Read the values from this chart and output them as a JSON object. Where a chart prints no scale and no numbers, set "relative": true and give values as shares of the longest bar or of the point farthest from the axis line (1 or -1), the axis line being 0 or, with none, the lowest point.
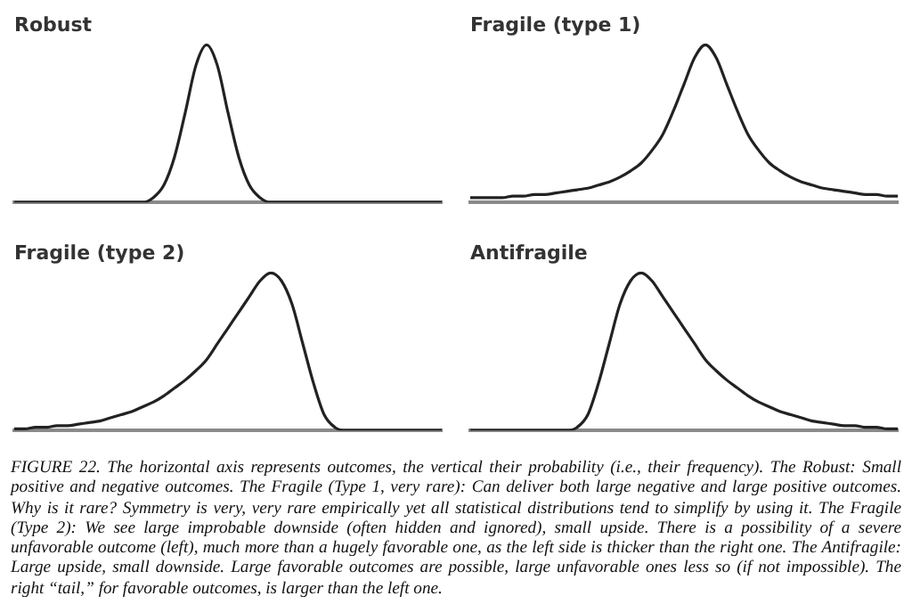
{
  "chart_data": [
    {
      "type": "line",
      "title": "Robust",
      "relative": true,
      "categories": [
        null,
        null,
        null,
        null,
        null,
        null,
        null,
        null,
        null,
        null,
        null,
        null,
        null,
        null,
        null,
        null,
        null,
        null,
        null,
        null,
        null,
        null,
        null,
        null,
        null,
        null,
        null,
        null,
        null,
        null,
        null,
        null,
        null,
        null,
        null,
        null,
        null,
        null,
        null,
        null,
        null
      ],
      "series": [
        {
          "color": "#222222",
          "values": [
            0,
            0,
            0,
            0,
            0,
            0,
            0,
            0,
            0,
            0,
            0,
            0,
            0,
            0.03,
            0.11,
            0.29,
            0.57,
            0.87,
            1,
            0.87,
            0.57,
            0.29,
            0.11,
            0.03,
            0,
            0,
            0,
            0,
            0,
            0,
            0,
            0,
            0,
            0,
            0,
            0,
            0,
            0,
            0,
            0,
            0
          ]
        }
      ]
    },
    {
      "type": "line",
      "title": "Fragile (type 1)",
      "relative": true,
      "categories": [
        null,
        null,
        null,
        null,
        null,
        null,
        null,
        null,
        null,
        null,
        null,
        null,
        null,
        null,
        null,
        null,
        null,
        null,
        null,
        null,
        null,
        null,
        null,
        null,
        null,
        null,
        null,
        null,
        null,
        null,
        null,
        null,
        null,
        null,
        null,
        null,
        null,
        null,
        null,
        null,
        null
      ],
      "series": [
        {
          "color": "#222222",
          "values": [
            0.03,
            0.03,
            0.03,
            0.03,
            0.04,
            0.04,
            0.05,
            0.05,
            0.06,
            0.07,
            0.08,
            0.09,
            0.11,
            0.13,
            0.16,
            0.2,
            0.25,
            0.33,
            0.43,
            0.58,
            0.75,
            0.92,
            1,
            0.92,
            0.75,
            0.58,
            0.43,
            0.33,
            0.25,
            0.2,
            0.16,
            0.13,
            0.11,
            0.09,
            0.08,
            0.07,
            0.06,
            0.05,
            0.05,
            0.04,
            0.04
          ]
        }
      ]
    },
    {
      "type": "line",
      "title": "Fragile (type 2)",
      "relative": true,
      "categories": [
        null,
        null,
        null,
        null,
        null,
        null,
        null,
        null,
        null,
        null,
        null,
        null,
        null,
        null,
        null,
        null,
        null,
        null,
        null,
        null,
        null,
        null,
        null,
        null,
        null,
        null,
        null,
        null,
        null,
        null,
        null,
        null,
        null,
        null,
        null,
        null,
        null,
        null,
        null,
        null,
        null
      ],
      "series": [
        {
          "color": "#222222",
          "values": [
            0.01,
            0.01,
            0.02,
            0.02,
            0.03,
            0.03,
            0.04,
            0.05,
            0.06,
            0.08,
            0.1,
            0.12,
            0.15,
            0.18,
            0.22,
            0.27,
            0.32,
            0.38,
            0.45,
            0.55,
            0.65,
            0.75,
            0.85,
            0.95,
            1,
            0.95,
            0.8,
            0.55,
            0.3,
            0.1,
            0.02,
            0,
            0,
            0,
            0,
            0,
            0,
            0,
            0,
            0,
            0
          ]
        }
      ]
    },
    {
      "type": "line",
      "title": "Antifragile",
      "relative": true,
      "categories": [
        null,
        null,
        null,
        null,
        null,
        null,
        null,
        null,
        null,
        null,
        null,
        null,
        null,
        null,
        null,
        null,
        null,
        null,
        null,
        null,
        null,
        null,
        null,
        null,
        null,
        null,
        null,
        null,
        null,
        null,
        null,
        null,
        null,
        null,
        null,
        null,
        null,
        null,
        null,
        null,
        null
      ],
      "series": [
        {
          "color": "#222222",
          "values": [
            0,
            0,
            0,
            0,
            0,
            0,
            0,
            0,
            0,
            0,
            0.02,
            0.1,
            0.3,
            0.55,
            0.8,
            0.95,
            1,
            0.95,
            0.85,
            0.75,
            0.65,
            0.55,
            0.45,
            0.38,
            0.32,
            0.27,
            0.22,
            0.18,
            0.15,
            0.12,
            0.1,
            0.08,
            0.06,
            0.05,
            0.04,
            0.03,
            0.03,
            0.02,
            0.02,
            0.01,
            0.01
          ]
        }
      ]
    },
    {
      "type": "other",
      "annotations": [
        "FIGURE 22. The horizontal axis represents outcomes, the vertical their probability (i.e., their frequency). The Robust: Small positive and negative outcomes. The Fragile (Type 1, very rare): Can deliver both large negative and large positive outcomes. Why is it rare? Symmetry is very, very rare empirically yet all statistical distributions tend to simplify by using it. The Fragile (Type 2): We see large improbable downside (often hidden and ignored), small upside. There is a possibility of a severe unfavorable outcome (left), much more than a hugely favorable one, as the left side is thicker than the right one. The Antifragile: Large upside, small downside. Large favorable outcomes are possible, large unfavorable ones less so (if not impossible). The right “tail,” for favorable outcomes, is larger than the left one."
      ]
    }
  ]
}
